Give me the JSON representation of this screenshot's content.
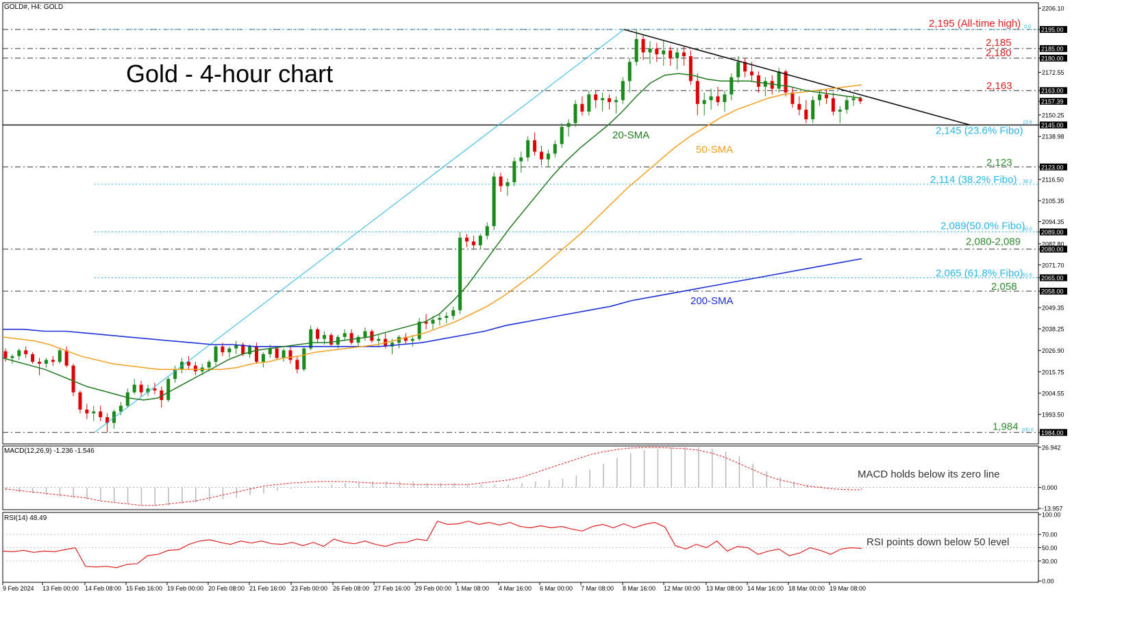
{
  "symbol_header": "GOLD#, H4:  GOLD",
  "headline": "Gold - 4-hour chart",
  "colors": {
    "bull": "#1a8a1a",
    "bear": "#e00000",
    "sma20": "#1f7a1f",
    "sma50": "#f5a020",
    "sma200": "#1c2fd6",
    "fibo": "#29b6e8",
    "resistance_label": "#e02020",
    "support_label": "#2e8b2e",
    "macd_hist": "#b8b8b8",
    "macd_signal": "#e02020",
    "rsi": "#e02020"
  },
  "chart_data": [
    {
      "type": "candlestick",
      "name": "price",
      "ylim": [
        1978,
        2209
      ],
      "x_ticks": [
        "9 Feb 2024",
        "13 Feb 00:00",
        "14 Feb 08:00",
        "15 Feb 16:00",
        "19 Feb 00:00",
        "20 Feb 08:00",
        "21 Feb 16:00",
        "23 Feb 00:00",
        "26 Feb 08:00",
        "27 Feb 16:00",
        "29 Feb 00:00",
        "1 Mar 08:00",
        "4 Mar 16:00",
        "6 Mar 00:00",
        "7 Mar 08:00",
        "8 Mar 16:00",
        "12 Mar 00:00",
        "13 Mar 08:00",
        "14 Mar 16:00",
        "18 Mar 00:00",
        "19 Mar 08:00"
      ],
      "y_ticks": [
        "2206.10",
        "2195.00",
        "2185.00",
        "2180.00",
        "2172.55",
        "2163.00",
        "2157.39",
        "2150.25",
        "2145.00",
        "2138.98",
        "2123.00",
        "2116.50",
        "2105.35",
        "2094.35",
        "2089.00",
        "2082.80",
        "2080.00",
        "2071.70",
        "2065.00",
        "2058.00",
        "2049.35",
        "2038.25",
        "2026.90",
        "2015.75",
        "2004.55",
        "1993.50",
        "1984.00"
      ],
      "levels": [
        {
          "value": 2195,
          "label": "2,195 (All-time high)",
          "kind": "resistance"
        },
        {
          "value": 2185,
          "label": "2,185",
          "kind": "resistance"
        },
        {
          "value": 2180,
          "label": "2,180",
          "kind": "resistance"
        },
        {
          "value": 2163,
          "label": "2,163",
          "kind": "resistance"
        },
        {
          "value": 2145,
          "label": "2,145 (23.6% Fibo)",
          "kind": "fibo-solid"
        },
        {
          "value": 2123,
          "label": "2,123",
          "kind": "support"
        },
        {
          "value": 2114,
          "label": "2,114 (38.2% Fibo)",
          "kind": "fibo"
        },
        {
          "value": 2089,
          "label": "2,089(50.0% Fibo)",
          "kind": "fibo"
        },
        {
          "value": 2080,
          "label": "2,080-2,089",
          "kind": "support"
        },
        {
          "value": 2065,
          "label": "2,065 (61.8% Fibo)",
          "kind": "fibo"
        },
        {
          "value": 2058,
          "label": "2,058",
          "kind": "support"
        },
        {
          "value": 1984,
          "label": "1,984",
          "kind": "support"
        }
      ],
      "fibo_tags": [
        "0.0",
        "23.6",
        "38.2",
        "50.0",
        "61.8",
        "100.0"
      ],
      "candles": [
        [
          2026.5,
          2028,
          2021,
          2023
        ],
        [
          2023,
          2025,
          2020,
          2024
        ],
        [
          2024,
          2028,
          2022,
          2027
        ],
        [
          2027,
          2029,
          2023,
          2025
        ],
        [
          2025,
          2026,
          2020,
          2021
        ],
        [
          2021,
          2023,
          2014,
          2020
        ],
        [
          2020,
          2023,
          2018,
          2022
        ],
        [
          2022,
          2024,
          2019,
          2021
        ],
        [
          2021,
          2028,
          2020,
          2027
        ],
        [
          2027,
          2029,
          2018,
          2019
        ],
        [
          2019,
          2020,
          2003,
          2005
        ],
        [
          2005,
          2006,
          1994,
          1996
        ],
        [
          1996,
          1999,
          1991,
          1994
        ],
        [
          1994,
          1998,
          1990,
          1995
        ],
        [
          1995,
          1998,
          1990,
          1992
        ],
        [
          1992,
          1994,
          1984,
          1989
        ],
        [
          1989,
          1996,
          1986,
          1995
        ],
        [
          1995,
          2000,
          1993,
          1998
        ],
        [
          1998,
          2007,
          1997,
          2005
        ],
        [
          2005,
          2012,
          2004,
          2009
        ],
        [
          2009,
          2011,
          2003,
          2005
        ],
        [
          2005,
          2009,
          2003,
          2007
        ],
        [
          2007,
          2010,
          2004,
          2006
        ],
        [
          2006,
          2008,
          1997,
          2001
        ],
        [
          2001,
          2013,
          2000,
          2012
        ],
        [
          2012,
          2019,
          2010,
          2017
        ],
        [
          2017,
          2023,
          2015,
          2021
        ],
        [
          2021,
          2024,
          2017,
          2019
        ],
        [
          2019,
          2021,
          2014,
          2016
        ],
        [
          2016,
          2020,
          2014,
          2018
        ],
        [
          2018,
          2022,
          2016,
          2021
        ],
        [
          2021,
          2030,
          2019,
          2029
        ],
        [
          2029,
          2031,
          2024,
          2026
        ],
        [
          2026,
          2029,
          2023,
          2028
        ],
        [
          2028,
          2032,
          2025,
          2030
        ],
        [
          2030,
          2031,
          2024,
          2025
        ],
        [
          2025,
          2030,
          2023,
          2029
        ],
        [
          2029,
          2031,
          2020,
          2021
        ],
        [
          2021,
          2026,
          2018,
          2025
        ],
        [
          2025,
          2030,
          2023,
          2028
        ],
        [
          2028,
          2029,
          2022,
          2023
        ],
        [
          2023,
          2028,
          2021,
          2027
        ],
        [
          2027,
          2029,
          2020,
          2022
        ],
        [
          2022,
          2024,
          2015,
          2017
        ],
        [
          2017,
          2029,
          2016,
          2028
        ],
        [
          2028,
          2040,
          2027,
          2038
        ],
        [
          2038,
          2039,
          2031,
          2033
        ],
        [
          2033,
          2037,
          2030,
          2035
        ],
        [
          2035,
          2036,
          2029,
          2030
        ],
        [
          2030,
          2035,
          2028,
          2034
        ],
        [
          2034,
          2038,
          2032,
          2036
        ],
        [
          2036,
          2038,
          2030,
          2031
        ],
        [
          2031,
          2035,
          2029,
          2034
        ],
        [
          2034,
          2039,
          2032,
          2037
        ],
        [
          2037,
          2038,
          2031,
          2032
        ],
        [
          2032,
          2035,
          2029,
          2033
        ],
        [
          2033,
          2036,
          2028,
          2029
        ],
        [
          2029,
          2033,
          2025,
          2031
        ],
        [
          2031,
          2035,
          2028,
          2034
        ],
        [
          2034,
          2036,
          2030,
          2032
        ],
        [
          2032,
          2035,
          2029,
          2033
        ],
        [
          2033,
          2044,
          2032,
          2042
        ],
        [
          2042,
          2046,
          2038,
          2041
        ],
        [
          2041,
          2045,
          2038,
          2043
        ],
        [
          2043,
          2046,
          2040,
          2044
        ],
        [
          2044,
          2047,
          2041,
          2045
        ],
        [
          2045,
          2050,
          2043,
          2048
        ],
        [
          2048,
          2089,
          2046,
          2086
        ],
        [
          2086,
          2088,
          2081,
          2084
        ],
        [
          2084,
          2087,
          2080,
          2082
        ],
        [
          2082,
          2088,
          2080,
          2087
        ],
        [
          2087,
          2094,
          2085,
          2092
        ],
        [
          2092,
          2120,
          2090,
          2118
        ],
        [
          2118,
          2120,
          2110,
          2113
        ],
        [
          2113,
          2117,
          2108,
          2115
        ],
        [
          2115,
          2128,
          2113,
          2126
        ],
        [
          2126,
          2131,
          2120,
          2128
        ],
        [
          2128,
          2139,
          2126,
          2137
        ],
        [
          2137,
          2141,
          2129,
          2131
        ],
        [
          2131,
          2134,
          2124,
          2127
        ],
        [
          2127,
          2132,
          2123,
          2130
        ],
        [
          2130,
          2137,
          2128,
          2135
        ],
        [
          2135,
          2146,
          2133,
          2144
        ],
        [
          2144,
          2148,
          2139,
          2146
        ],
        [
          2146,
          2158,
          2144,
          2156
        ],
        [
          2156,
          2160,
          2150,
          2152
        ],
        [
          2152,
          2163,
          2150,
          2161
        ],
        [
          2161,
          2163,
          2154,
          2158
        ],
        [
          2158,
          2162,
          2152,
          2159
        ],
        [
          2159,
          2161,
          2153,
          2157
        ],
        [
          2157,
          2160,
          2151,
          2158
        ],
        [
          2158,
          2170,
          2156,
          2168
        ],
        [
          2168,
          2180,
          2162,
          2178
        ],
        [
          2178,
          2195,
          2176,
          2190
        ],
        [
          2190,
          2192,
          2179,
          2183
        ],
        [
          2183,
          2189,
          2177,
          2185
        ],
        [
          2185,
          2188,
          2178,
          2182
        ],
        [
          2182,
          2189,
          2176,
          2184
        ],
        [
          2184,
          2186,
          2176,
          2180
        ],
        [
          2180,
          2185,
          2174,
          2183
        ],
        [
          2183,
          2186,
          2176,
          2181
        ],
        [
          2181,
          2184,
          2166,
          2168
        ],
        [
          2168,
          2172,
          2150,
          2156
        ],
        [
          2156,
          2162,
          2150,
          2158
        ],
        [
          2158,
          2164,
          2153,
          2160
        ],
        [
          2160,
          2165,
          2155,
          2157
        ],
        [
          2157,
          2163,
          2152,
          2161
        ],
        [
          2161,
          2172,
          2158,
          2170
        ],
        [
          2170,
          2181,
          2167,
          2178
        ],
        [
          2178,
          2180,
          2170,
          2173
        ],
        [
          2173,
          2178,
          2168,
          2171
        ],
        [
          2171,
          2173,
          2162,
          2165
        ],
        [
          2165,
          2170,
          2160,
          2168
        ],
        [
          2168,
          2171,
          2161,
          2164
        ],
        [
          2164,
          2175,
          2162,
          2173
        ],
        [
          2173,
          2174,
          2160,
          2162
        ],
        [
          2162,
          2165,
          2154,
          2156
        ],
        [
          2156,
          2160,
          2150,
          2153
        ],
        [
          2153,
          2158,
          2146,
          2148
        ],
        [
          2148,
          2160,
          2146,
          2158
        ],
        [
          2158,
          2163,
          2155,
          2161
        ],
        [
          2161,
          2164,
          2156,
          2159
        ],
        [
          2159,
          2162,
          2150,
          2152
        ],
        [
          2152,
          2155,
          2146,
          2153
        ],
        [
          2153,
          2160,
          2151,
          2158
        ],
        [
          2158,
          2161,
          2155,
          2159
        ],
        [
          2159,
          2160,
          2156,
          2157.4
        ]
      ],
      "sma20": [
        2023,
        2021,
        2019,
        2017,
        2014,
        2011,
        2008,
        2006,
        2004,
        2002,
        2001,
        2002,
        2006,
        2010,
        2014,
        2018,
        2022,
        2025,
        2027,
        2028,
        2029,
        2030,
        2031,
        2031,
        2032,
        2033,
        2034,
        2036,
        2038,
        2040,
        2042,
        2046,
        2053,
        2061,
        2071,
        2081,
        2091,
        2100,
        2109,
        2118,
        2126,
        2133,
        2139,
        2145,
        2152,
        2160,
        2167,
        2171,
        2172,
        2171,
        2169,
        2168,
        2168,
        2168,
        2167,
        2166,
        2165,
        2163,
        2162,
        2161,
        2160,
        2159
      ],
      "sma50": [
        2034,
        2033,
        2032,
        2030,
        2027,
        2024,
        2022,
        2020,
        2019,
        2018,
        2017,
        2017,
        2017,
        2017,
        2017,
        2018,
        2020,
        2021,
        2023,
        2024,
        2026,
        2027,
        2028,
        2029,
        2030,
        2032,
        2034,
        2036,
        2039,
        2042,
        2046,
        2050,
        2055,
        2061,
        2067,
        2074,
        2081,
        2088,
        2096,
        2104,
        2112,
        2119,
        2126,
        2133,
        2139,
        2144,
        2149,
        2153,
        2156,
        2159,
        2161,
        2162,
        2163,
        2164,
        2165,
        2166
      ],
      "sma200": [
        2038,
        2038,
        2037,
        2037,
        2036,
        2035,
        2034,
        2033,
        2032,
        2031,
        2030,
        2030,
        2029,
        2029,
        2029,
        2029,
        2029,
        2029,
        2029,
        2030,
        2031,
        2033,
        2035,
        2037,
        2040,
        2042,
        2044,
        2046,
        2048,
        2050,
        2053,
        2055,
        2057,
        2059,
        2061,
        2063,
        2065,
        2067,
        2069,
        2071,
        2073,
        2075
      ],
      "trendline": {
        "from": [
          2195
        ],
        "to": [
          2145
        ]
      },
      "sma_labels": {
        "sma20": "20-SMA",
        "sma50": "50-SMA",
        "sma200": "200-SMA"
      }
    },
    {
      "type": "bar",
      "name": "macd",
      "header": "MACD(12,26,9) -1.236 -1.546",
      "ylim": [
        -13.957,
        26.942
      ],
      "y_ticks": [
        "26.942",
        "0.000",
        "-13.957"
      ],
      "annotation": "MACD holds below its zero line",
      "histogram": [
        -2,
        -3,
        -4,
        -5,
        -6,
        -7,
        -8,
        -9,
        -10,
        -11,
        -12,
        -12,
        -12,
        -11,
        -10,
        -9,
        -8,
        -7,
        -5,
        -4,
        -2,
        -1,
        0,
        1,
        2,
        3,
        3,
        4,
        4,
        4,
        4,
        3,
        3,
        3,
        2,
        2,
        2,
        2,
        3,
        4,
        5,
        6,
        8,
        12,
        16,
        20,
        23,
        25,
        26,
        27,
        27,
        27,
        26,
        24,
        21,
        16,
        11,
        7,
        4,
        2,
        1,
        0,
        -1,
        -1.2
      ],
      "signal": [
        -1,
        -2,
        -3,
        -4,
        -5,
        -6,
        -7,
        -9,
        -10,
        -11,
        -12,
        -12,
        -11,
        -10,
        -9,
        -7,
        -5,
        -3,
        -1,
        1,
        2,
        3,
        3.5,
        4,
        4,
        4,
        3.5,
        3,
        3,
        2.5,
        2,
        2,
        2,
        2,
        2,
        3,
        4,
        5,
        7,
        10,
        13,
        16,
        19,
        22,
        24,
        25.5,
        26.5,
        26.8,
        26.8,
        26.5,
        26,
        25,
        23,
        20,
        16,
        12,
        8,
        5,
        3,
        1,
        0,
        -1,
        -1.5,
        -1.5
      ]
    },
    {
      "type": "line",
      "name": "rsi",
      "header": "RSI(14) 48.49",
      "ylim": [
        0,
        100
      ],
      "y_ticks": [
        "100.00",
        "70.00",
        "50.00",
        "30.00",
        "0.00"
      ],
      "annotation": "RSI points down below 50 level",
      "values": [
        45,
        44,
        46,
        43,
        45,
        44,
        47,
        50,
        22,
        21,
        22,
        20,
        25,
        26,
        38,
        40,
        46,
        47,
        55,
        60,
        62,
        58,
        55,
        60,
        57,
        60,
        56,
        55,
        58,
        53,
        58,
        52,
        63,
        58,
        56,
        60,
        55,
        52,
        57,
        58,
        63,
        61,
        90,
        85,
        86,
        90,
        85,
        88,
        84,
        88,
        82,
        80,
        83,
        80,
        82,
        78,
        75,
        82,
        85,
        80,
        86,
        80,
        85,
        88,
        81,
        53,
        48,
        55,
        50,
        60,
        45,
        52,
        50,
        40,
        45,
        48,
        38,
        42,
        50,
        46,
        40,
        48,
        50,
        49
      ]
    }
  ],
  "time_axis_label_first": "9 Feb 2024"
}
